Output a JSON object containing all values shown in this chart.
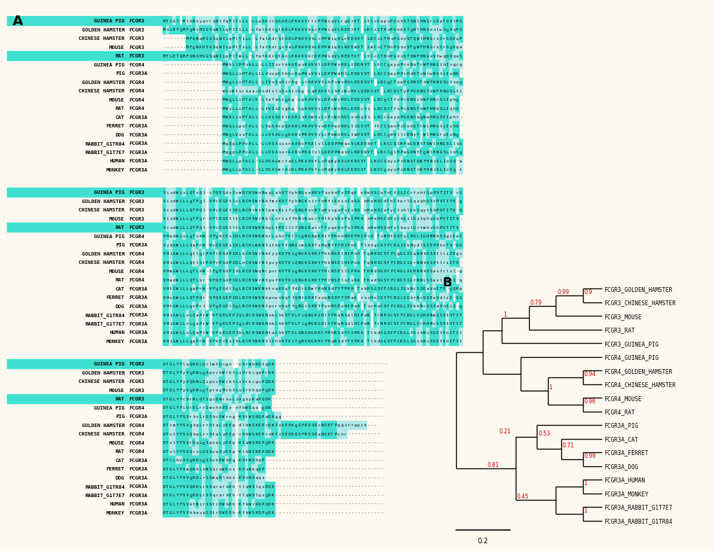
{
  "panel_A_label": "A",
  "panel_B_label": "B",
  "background_color": "#ffffff",
  "fig_bg": "#fef9f0",
  "species_rows": [
    [
      "GUINEA PIG",
      "FCGR3"
    ],
    [
      "GOLDEN HAMSTER",
      "FCGR3"
    ],
    [
      "CHINESE HAMSTER",
      "FCGR3"
    ],
    [
      "MOUSE",
      "FCGR3"
    ],
    [
      "RAT",
      "FCGR3"
    ],
    [
      "GUINEA PIG",
      "FCGR4"
    ],
    [
      "PIG",
      "FCGR3A"
    ],
    [
      "GOLDEN HAMSTER",
      "FCGR4"
    ],
    [
      "CHINESE HAMSTER",
      "FCGR4"
    ],
    [
      "MOUSE",
      "FCGR4"
    ],
    [
      "RAT",
      "FCGR4"
    ],
    [
      "CAT",
      "FCGR3A"
    ],
    [
      "FERRET",
      "FCGR3A"
    ],
    [
      "DOG",
      "FCGR3A"
    ],
    [
      "RABBIT_G1TR84",
      "FCGR3A"
    ],
    [
      "RABBIT_G1T7E7",
      "FCGR3A"
    ],
    [
      "HUMAN",
      "FCGR3A"
    ],
    [
      "MONKEY",
      "FCGR3A"
    ]
  ],
  "bootstrap_color": "#cc0000",
  "tree_line_color": "#000000",
  "scale_bar_label": "0.2",
  "block1_seqs": [
    "MTLkT-MlkNvyprrqWlfqPlTiLL-LLaSAcrQAADLPKAVVrrcPPWiqVLrgDrVT LtCcGapsPGnhSTQWlHNGrLIpTQVlPSYrft-AkqNDSCEYRCQaGqtSLSDPVrLD",
    "MsLETQMFQNvHSGSqWILqPlTiLL-LfalAdrQtADLPKAVVkLcPPWiqVLKEDrVT LKCcCTHsPGndSTQWlHNGnslwSQVqPSYtfk-AsdNDSCEYqCrmGqtSLSDPVQLg",
    "-------MFQNqHSGSqWILqPlTiLL-LfalAdrQtADLPKAVVkLcPPWiqVLrEDSVT LKCcCTHsPGnySTQWlHNGrsIrSQVqPSYtfk-AssNDSCEYqCQmGqtSLSDPVhLg",
    "-------MFQNAHSGSqWILpPlTiLL-LfafAdrQsAaLPKAVVkLDPPWiqVLKEDmVT LmCcCTHnPGnsSTQWFHNGrsIrSQVqaSYtfk-AtVNDSCEYRCQmcqtrLSDPVdLg",
    "MTLETQMFQNAHSGSqWILpPlTmLL-LfafAdrQtAnLPKAVVkrDPPWiqVLKEDTVT LtCcCTHnPGnsSTQWFHNGsStwgQVqaSYtfk-AtVNDSCEYRCrmahtSLSDPVhLE",
    "------------------MWhLLPPsALL-LLISsvtkAADpsKAVVlLDPPWvRVLtDDNVT LtCCQaypPcnNaTrWFHNGthIvgcqaPSYlIsgiKVcnSCkYqCQTdLSpLSDsVQLQ",
    "------------------MWQLLsPTALLlLVsvpGthAcDpPKsVViLDPPWdRlLEKDSVT LKCCQayPPrDdSTcWrwNGtLIoNK-asSYsItdAtVgnSCEYtCKTGLSAqSDPlrLE",
    "------------------MWQLLiPTALL-LIVsSsGirAg-LrKAVVtLhPcWvRVLEEDSVT LRCQCTyaPGDNSTkWFHNGSLtsqQ-dtnYvIgsAKVkDSCEYkCQTaLSTaSDPVnLE",
    "------------------mSvWtsrkaacDndtslsSsGirAg-LqKAVVtLhPcWvRVLQDDSVT LRCQCTyPPGDNSTkWFHNGSLtlqQ-danYlIgsAKVkDSGEYtCQTaLSmLSDPVnLE",
    "------------------MWQLLiPTALV-LtafaGiQAg-LqKAVVhLDPkWvRVLEEDSVT LRCQCTfsPcDNSikWFHNcSLIphQ-danYvIqsARVkDSCmYRCQTaLSTiSDPVQLE",
    "------------------MWyLLiPTALL-LtVSsGvgAg-LqKAVViLDPcWvRVLEEDcVi LRCQCTfsPcDNSTkWFHNkSLIqhQ-danYvIqsARVkDSCmYRCQTafSALSDPVQLD",
    "------------------MWRLLsPTALL-LLVSAGtrAADLsKAmVvLcPcWnRVLvsDgVi LKCcGaypPGDNSaQWwHNGSVIphr-aPSYsIcAARscDSCEYkCQTGLScaSDPVQLE",
    "------------------MWQLLpsTALL-LVaSArpQAADLPKAVVvsDPPqnRVLt1DSVT ftCCQanPcGnhSTrWlHNGtLIoSQ--tSYfIrAAoVcnSCEYRCQTGLSoLSDPVQLE",
    "------------------MWQLVssTALL-LLVSAGLQAADvPKAVVvLcPkWnRVLtmDSVT LKCCQdHllrDNyT-WlHNGrpIsNQ-istYiIknAsIknsCEYRCQTdqSkLSDPVQLE",
    "------------------MgQpLPPvALL-LLVSAsssrAADvPKAlvlLDDPPWasVLKDDhVT LKCCQlHPaGDNtTQWlHNGSLlsSQ-aPaYtItAARAeDqGEYRCQTGLSSLSDPVQlh",
    "------------------MgQpLPPvALL-LLVSAssrAADvPKAlvlLDDPPWasVLKDDbVT LKCCQlHPaGDNtTQWlHNGSLloSQ-aPaYtItAARacDgCEYRCQTGLSSLSDPVQLr",
    "------------------MWQLLpTALL-LLVSAGmrteDLPKAVVfLcPqWyRVLEKDSVT LKCCQaysPcDNSTQWFHNcSLIoSQ-asSYfIdAAtVdDSCEYRCQThLSTLSDPVQLE",
    "------------------MWQLLpTALL-LLVSAGmrAcDLPKAVVfLcPqWyRVLEKDSVT LKCCQaysPcDNSTrWFHNcSLIoSQ-tsSYfIaAARVNnSCEYRCQTsLSTLSDPVQLE"
  ],
  "block2_seqs": [
    "VisdWLvLQTsQl-iFQEGdvIvmRCHSWnNwpLakVTfyhNGvaKKVFsvknFsIPqA nHeHSCaYnCtGLICrtshtSpPVTITV-rGPciPSn-----PlWfQViFCLVMGLLFAV",
    "VisdWLLLQTPQl-VPcEGEtIvLRCHSWrNkfmsKVTfyhNGKsirYnMfiSnisIaKA nHeHSCdYhCtarlGqaqhSSrPVTITV-QGPSttpfTS---llWYhaAFCLVMcLLFAV",
    "VisdWLLLQTPQl-VPcEGEtIKLRCHrWrNlamsKiifyQNGKsvKYqHsvgaFsIsKA nHeHSCeYyCtshlGkSqytSkPVTITV-QGsAttpiS---llWYhaAFCLVMcLLFAV",
    "VisdWLLLQTPQr-VFlEGEtltLRCHSWrNklLnrisffhNcKavrYHlhykSnFsIPKA nHeHSCdYyCkGslGstqhqSkPVTITV-QdPAttSsiS---lvWYhtAFsLVMcLLFAV",
    "VisdWLLLQTPQl-VPcEGEtltLRCHSWKNkqLtKVlllfQNGKpvrYYyqaSnFsIPKA nHeHSGnYyCkaylGrtmhvSkPVTITV-QGsAtaStsS---lvWfhaAFCLVMcLLFAV",
    "VHadWLvLQTskW-VFQkCEsIRLRCHSWKNkrLykvTVlYLQNGKpKKifPHnnNSEFHIPcA TvNHtGSYyCRGLIGHNNkSSgiVaITfqadfAgPSiAp-lFPlWqQIAFCLmMGLLFAV",
    "VykGWLLLQaPrW-VvQEGEsIRLRCHLWKNtitkVYfQNGcmGKKfsHqNfEYHIPnA TlkdgCSYFCRGIIkNydlSSEPVkvTV-QGsksPSpilSfFlPWHQIiFCLVMGfLFAV",
    "VHiGWLLLQtlQrPVFrEGdPIRLkCHSWrNktyyKVTVLQNGKGKKYFhkNSElHIPnA TqNHSCSYFCgGLIGqNNkSSEtlriIVgvlFpdltppSNnFPPWHQItFCLliGLLFtI",
    "VHiGWLLLQtlQrPVFrEGdPIRLnCHSWrNtpvyKVTVLQNGKGKKYFhkNSElHIPnA TqNHSCSYFCRGIIGrNNkSSEtlriITV-qdltaPS----tFPPWHQItFCLliGLLFtI",
    "VHmGWLLLQTLkW-lFQEGdPIhLRCHSWqNrpvrKVTVLQNGKGKKYFHcNSEllIPKA THNdSGSYFCRGLIGHNNkSSasfrlsl-gdPgaPS----mFPPWHQItFCLliGLLFAI",
    "VHadWLLLQTLkr-VFQEGdPIRLRCHSWrNtpvfKVTVLQNGKGKKYFHrNSElsIsKA THadSGSYFCRGIIGrNNiSSaslqIsI-qdPtqPS----sFIPWHQItFCLliGLLFAI",
    "VHtGWLLLQaPrW-VFQEGdtIQLRCHSWKNktvqKVqYfdGrGKmfHkNSdFYTPKA TskHSGSYFCRGLIGkNcSSEaVnITV-QGPpvPStSt-flPhWYQIAFfLVtaLLFvV",
    "VHvGWLLLQTPQr-VFQEGEPIRLRCHSWKNkpvwnVqYfQNrGKKfsyqNSEFYIPaA rscHnCSYFCRGLIGkrNcSSEaVdliI-QGPpvPStSa-llPfWphIpFavVMaLLFAV",
    "VHtGWLLLQvPrl-VFQEGElIQLRCHSWKNtpvrnVqYfQNGrGKKfFynNSEyHIPaA TscHnCSYFCRGLIGkkNcSSEaVnIiI-QGsSIPStSl-llshWpQIpFsLVMaLLFAV",
    "VHiGWLLvLQaPrW-VFQEGEPIQLRCHSWKNnkLhkVTVLYLQNGKGRlYFHqNSdlHIPeN TrNHSCSYFCRGLIGHHNmSSEtVTITV-QGPAnPviSS-svlPWHQIAFCLVMGLLlAa",
    "VHiGWLLvLQaPrW-VFQEGEPIQLRCHSWKNnkLhkVTVLYLQNGKGRlYFHqNSdlHIPeN TrNHSCSYFCRGLIrHHNvSSEtVTITV-QGPAnPvvSS-svlPWHQIAFCLVMGLLlAa",
    "VHiGWLLvLQaPrW-VFkEGEPIhLRCHSWKNtaLhkVTVLQNGKGRKYFHhNSdFYIPKA TlkdSGSYFCRGLfGskNvSSEtVnITItQGlAvstiSS-fFPPgYQVSFCLVMvLLFAV",
    "VHiGWLLLQaPrW-VFkEcEsIhLRCHSWKNtlIhkVTVLYQNGKGRKYFHqNSdfYIPKA TlkdSGSYFCRGLIGskNvSSEtVnITItQdlAvsSiSS-fFPPgYQVSFCLVMvLLFAV"
  ],
  "block3_seqs": [
    "DTGLYFlaQRDLQrlmtDcgn--cVrWhKDtgDK----------------------------------",
    "DTGLYFyVQRNLQApvckWrktLsVrkcqaPrDK---------------------------------",
    "DTGLYFyVQRNLQipvcEWrktLsVrkcgvPQDK---------------------------------",
    "DTGLYFyVQRNLQTpreyMrktLsIrkhqaPQDK---------------------------------",
    "DTGLYFcVrNLQTSgcDWrksLsVgkyKaPQDK----------------------------------",
    "DTGLYFiVrDLrrSmvhkEEy-nfkWSqa-QDK----------------------------------",
    "DTGLYFSVrkvLrSSkcDWrng-KVtWSRDPaDKgg-------------------------------",
    "DTvmYFSVQkqLrrStaLyEEp-dlhWSKEPcDKTiSEEKQSFRSSRvNSETPggsrrppck---",
    "DTvlYFSVQkqLrrStaLyEEp-cVhWSKEPcnKTiSEEKQSFRSSRaNSETPcnr----------",
    "DTvlYFSVrRgLQSpvaLyEEp-KIqWSKEPQDK---------------------------------",
    "DTvlYFSVQrsLQSSvaVyEEp-KlhNSKEPQDK---------------------------------",
    "DTCLhvAVQRDLQSSvkEWkDg-KVtWShqP------------------------------------",
    "DTGLYFAmQRhLhNSkraWEns-KVsWkqDP------------------------------------",
    "DTGLYFAVQRDLrSSmqNlkns-KViNSqqs------------------------------------",
    "DTGLYFSVQRDLrSSqrarkEh-tlqNSlqsDQK---------------------------------",
    "DTGLYFSVQRDLrSSqrarkEh-tlqWSlqsQDK---------------------------------",
    "DTGLYFSVktNirSStrDWkDh-KfkWrKDPQDK---------------------------------",
    "DTGLYFSVkkavpSStrDWEDh-KfkWSKDPQDK---------------------------------"
  ]
}
